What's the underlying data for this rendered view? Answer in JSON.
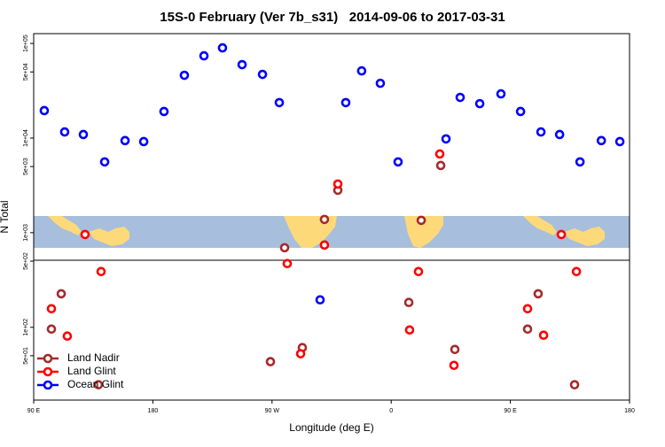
{
  "chart_data": {
    "type": "scatter",
    "title": "15S-0 February (Ver 7b_s31)   2014-09-06 to 2017-03-31",
    "x_label": "Longitude (deg E)",
    "y_label": "N Total",
    "log_y": true,
    "legend": "bottomleft",
    "xlim": [
      90,
      540
    ],
    "ylim": [
      17,
      127000
    ],
    "xticks": [
      {
        "value": 90,
        "label": "90 E"
      },
      180,
      {
        "value": 270,
        "label": "90 W"
      },
      {
        "value": 360,
        "label": "0"
      },
      {
        "value": 450,
        "label": "90 E"
      },
      {
        "value": 540,
        "label": "180"
      }
    ],
    "yticks": [
      {
        "value": 100000,
        "label": "1e+05"
      },
      {
        "value": 50000,
        "label": "5e+04"
      },
      {
        "value": 10000,
        "label": "1e+04"
      },
      {
        "value": 5000,
        "label": "5e+03"
      },
      {
        "value": 1000,
        "label": "1e+03"
      },
      {
        "value": 500,
        "label": "5e+02"
      },
      {
        "value": 100,
        "label": "1e+02"
      },
      {
        "value": 50,
        "label": "5e+01"
      }
    ],
    "series": [
      {
        "name": "Land Nadir",
        "color": "#a52a2a",
        "x": [
          110.8,
          103.4,
          138.9,
          279.5,
          268.8,
          292.9,
          309.6,
          319.7,
          373.3,
          382.7,
          397.4,
          408.1,
          471.0,
          463.0,
          498.5
        ],
        "values": [
          226,
          95.7,
          24.7,
          693,
          43.3,
          61,
          1380,
          2810,
          183,
          1350,
          5130,
          58.3,
          226,
          95.7,
          24.7
        ]
      },
      {
        "name": "Land Glint",
        "color": "#ff0000",
        "x": [
          128.8,
          140.9,
          103.4,
          115.4,
          281.5,
          291.6,
          309.6,
          319.7,
          373.9,
          380.6,
          396.7,
          407.4,
          463.0,
          475.1,
          488.5,
          499.9
        ],
        "values": [
          957,
          388,
          157,
          80.7,
          471,
          52.5,
          740,
          3270,
          93.7,
          388,
          6790,
          39.6,
          157,
          82.4,
          957,
          388
        ]
      },
      {
        "name": "Ocean Glint",
        "color": "#0000ff",
        "x": [
          98.0,
          113.4,
          127.5,
          143.6,
          159.0,
          173.1,
          188.4,
          203.8,
          218.6,
          232.6,
          247.4,
          262.8,
          275.5,
          306.3,
          325.7,
          337.7,
          351.8,
          365.2,
          401.4,
          412.1,
          426.9,
          442.9,
          457.7,
          473.1,
          487.2,
          502.6,
          518.7,
          532.7
        ],
        "values": [
          19500,
          11600,
          10900,
          5600,
          9400,
          9180,
          19100,
          46100,
          74000,
          89800,
          59700,
          47100,
          23700,
          195,
          23700,
          51300,
          37900,
          5600,
          9800,
          26900,
          23100,
          29300,
          19100,
          11600,
          10900,
          5600,
          9400,
          9180
        ]
      }
    ]
  }
}
